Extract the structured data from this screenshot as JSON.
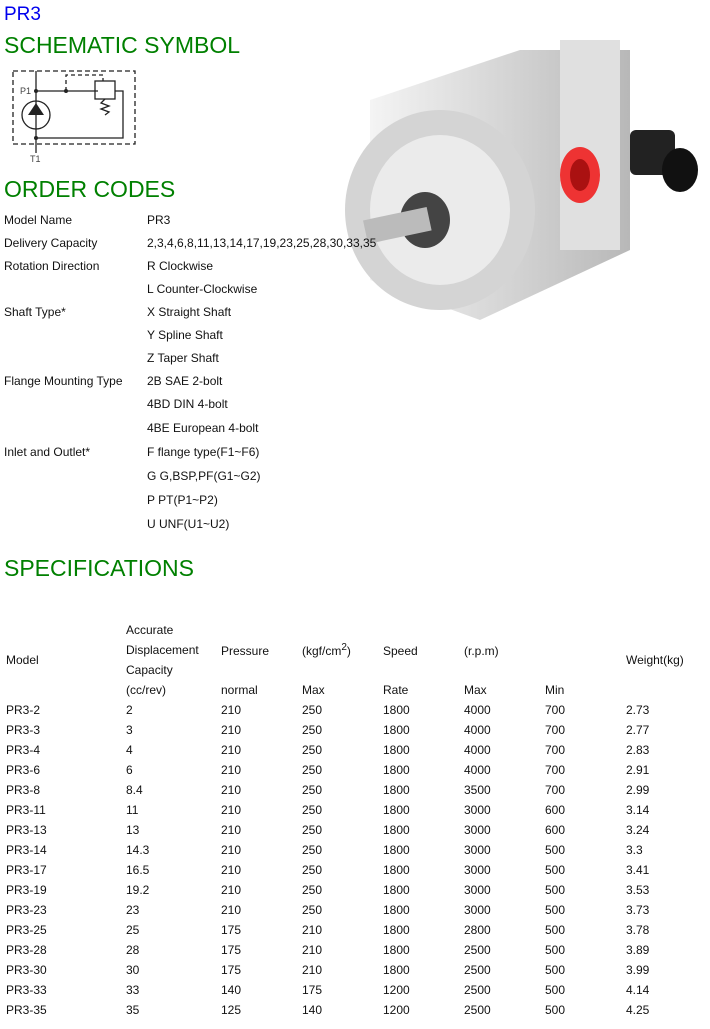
{
  "title": "PR3",
  "headings": {
    "schematic": "SCHEMATIC SYMBOL",
    "order": "ORDER CODES",
    "specs": "SPECIFICATIONS"
  },
  "schematic_labels": {
    "p": "P1",
    "t": "T1"
  },
  "order_codes": [
    {
      "k": "Model Name",
      "v": "PR3"
    },
    {
      "k": "Delivery Capacity",
      "v": "2,3,4,6,8,11,13,14,17,19,23,25,28,30,33,35"
    },
    {
      "k": "Rotation Direction",
      "v": "R Clockwise"
    },
    {
      "k": "",
      "v": "L Counter-Clockwise"
    },
    {
      "k": "Shaft Type*",
      "v": "X Straight Shaft"
    },
    {
      "k": "",
      "v": "Y Spline Shaft"
    },
    {
      "k": "",
      "v": "Z Taper Shaft"
    },
    {
      "k": "Flange Mounting Type",
      "v": "2B SAE 2-bolt"
    },
    {
      "k": "",
      "v": "4BD DIN 4-bolt"
    },
    {
      "k": "",
      "v": "4BE European 4-bolt"
    },
    {
      "k": "Inlet and Outlet*",
      "v": "F flange type(F1~F6)"
    },
    {
      "k": "",
      "v": "G G,BSP,PF(G1~G2)"
    },
    {
      "k": "",
      "v": "P PT(P1~P2)"
    },
    {
      "k": "",
      "v": "U UNF(U1~U2)"
    }
  ],
  "spec_header": {
    "model": "Model",
    "acc1": "Accurate",
    "acc2": "Displacement",
    "acc3": "Capacity",
    "pressure": "Pressure",
    "unit": "(kgf/cm",
    "sup": "2",
    "unit_end": ")",
    "speed": "Speed",
    "rpm": "(r.p.m)",
    "weight": "Weight(kg)",
    "sub": [
      "(cc/rev)",
      "normal",
      "Max",
      "Rate",
      "Max",
      "Min"
    ]
  },
  "rows": [
    [
      "PR3-2",
      "2",
      "210",
      "250",
      "1800",
      "4000",
      "700",
      "2.73"
    ],
    [
      "PR3-3",
      "3",
      "210",
      "250",
      "1800",
      "4000",
      "700",
      "2.77"
    ],
    [
      "PR3-4",
      "4",
      "210",
      "250",
      "1800",
      "4000",
      "700",
      "2.83"
    ],
    [
      "PR3-6",
      "6",
      "210",
      "250",
      "1800",
      "4000",
      "700",
      "2.91"
    ],
    [
      "PR3-8",
      "8.4",
      "210",
      "250",
      "1800",
      "3500",
      "700",
      "2.99"
    ],
    [
      "PR3-11",
      "11",
      "210",
      "250",
      "1800",
      "3000",
      "600",
      "3.14"
    ],
    [
      "PR3-13",
      "13",
      "210",
      "250",
      "1800",
      "3000",
      "600",
      "3.24"
    ],
    [
      "PR3-14",
      "14.3",
      "210",
      "250",
      "1800",
      "3000",
      "500",
      "3.3"
    ],
    [
      "PR3-17",
      "16.5",
      "210",
      "250",
      "1800",
      "3000",
      "500",
      "3.41"
    ],
    [
      "PR3-19",
      "19.2",
      "210",
      "250",
      "1800",
      "3000",
      "500",
      "3.53"
    ],
    [
      "PR3-23",
      "23",
      "210",
      "250",
      "1800",
      "3000",
      "500",
      "3.73"
    ],
    [
      "PR3-25",
      "25",
      "175",
      "210",
      "1800",
      "2800",
      "500",
      "3.78"
    ],
    [
      "PR3-28",
      "28",
      "175",
      "210",
      "1800",
      "2500",
      "500",
      "3.89"
    ],
    [
      "PR3-30",
      "30",
      "175",
      "210",
      "1800",
      "2500",
      "500",
      "3.99"
    ],
    [
      "PR3-33",
      "33",
      "140",
      "175",
      "1200",
      "2500",
      "500",
      "4.14"
    ],
    [
      "PR3-35",
      "35",
      "125",
      "140",
      "1200",
      "2500",
      "500",
      "4.25"
    ]
  ]
}
